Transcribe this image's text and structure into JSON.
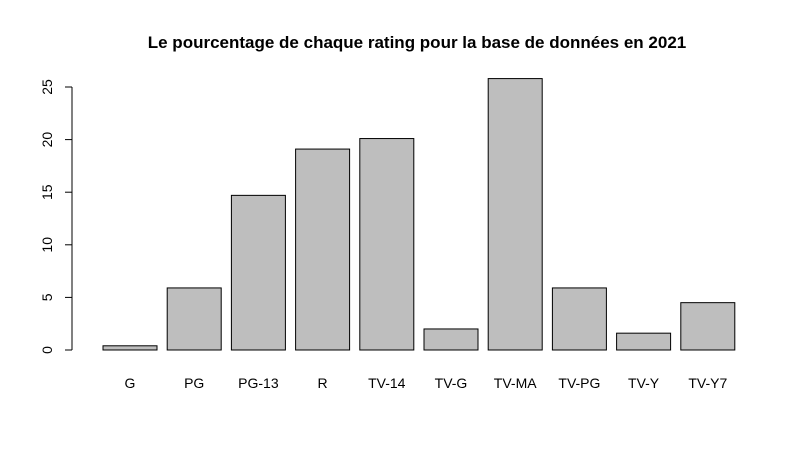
{
  "chart_data": {
    "type": "bar",
    "title": "Le pourcentage de chaque rating pour la base de données en 2021",
    "xlabel": "",
    "ylabel": "",
    "categories": [
      "G",
      "PG",
      "PG-13",
      "R",
      "TV-14",
      "TV-G",
      "TV-MA",
      "TV-PG",
      "TV-Y",
      "TV-Y7"
    ],
    "values": [
      0.4,
      5.9,
      14.7,
      19.1,
      20.1,
      2.0,
      25.8,
      5.9,
      1.6,
      4.5
    ],
    "ylim": [
      0,
      25
    ],
    "yticks": [
      0,
      5,
      10,
      15,
      20,
      25
    ],
    "grid": false,
    "colors": {
      "bar_fill": "#bebebe",
      "bar_stroke": "#000000"
    }
  }
}
